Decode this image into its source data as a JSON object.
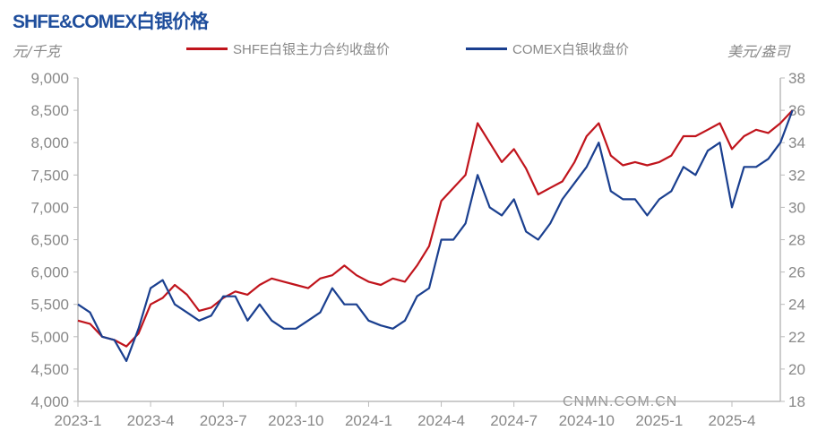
{
  "chart_data": {
    "type": "line",
    "title": "SHFE&COMEX白银价格",
    "ylabel_left": "元/千克",
    "ylabel_right": "美元/盎司",
    "ylim_left": [
      4000,
      9000
    ],
    "ylim_right": [
      18,
      38
    ],
    "yticks_left": [
      "4,000",
      "4,500",
      "5,000",
      "5,500",
      "6,000",
      "6,500",
      "7,000",
      "7,500",
      "8,000",
      "8,500",
      "9,000"
    ],
    "yticks_right": [
      "18",
      "20",
      "22",
      "24",
      "26",
      "28",
      "30",
      "32",
      "34",
      "36",
      "38"
    ],
    "xticks": [
      "2023-1",
      "2023-4",
      "2023-7",
      "2023-10",
      "2024-1",
      "2024-4",
      "2024-7",
      "2024-10",
      "2025-1",
      "2025-4"
    ],
    "grid": false,
    "legend_position": "top",
    "watermark": "CNMN.COM.CN",
    "x": [
      "2023-01-01",
      "2023-01-16",
      "2023-02-01",
      "2023-02-16",
      "2023-03-01",
      "2023-03-16",
      "2023-04-01",
      "2023-04-16",
      "2023-05-01",
      "2023-05-16",
      "2023-06-01",
      "2023-06-16",
      "2023-07-01",
      "2023-07-16",
      "2023-08-01",
      "2023-08-16",
      "2023-09-01",
      "2023-09-16",
      "2023-10-01",
      "2023-10-16",
      "2023-11-01",
      "2023-11-16",
      "2023-12-01",
      "2023-12-16",
      "2024-01-01",
      "2024-01-16",
      "2024-02-01",
      "2024-02-16",
      "2024-03-01",
      "2024-03-16",
      "2024-04-01",
      "2024-04-16",
      "2024-05-01",
      "2024-05-16",
      "2024-06-01",
      "2024-06-16",
      "2024-07-01",
      "2024-07-16",
      "2024-08-01",
      "2024-08-16",
      "2024-09-01",
      "2024-09-16",
      "2024-10-01",
      "2024-10-16",
      "2024-11-01",
      "2024-11-16",
      "2024-12-01",
      "2024-12-16",
      "2025-01-01",
      "2025-01-16",
      "2025-02-01",
      "2025-02-16",
      "2025-03-01",
      "2025-03-16",
      "2025-04-01",
      "2025-04-16",
      "2025-05-01",
      "2025-05-16",
      "2025-06-01",
      "2025-06-16"
    ],
    "series": [
      {
        "name": "SHFE白银主力合约收盘价",
        "axis": "left",
        "color": "#c0141c",
        "values": [
          5250,
          5200,
          5000,
          4950,
          4850,
          5050,
          5500,
          5600,
          5800,
          5650,
          5400,
          5450,
          5600,
          5700,
          5650,
          5800,
          5900,
          5850,
          5800,
          5750,
          5900,
          5950,
          6100,
          5950,
          5850,
          5800,
          5900,
          5850,
          6100,
          6400,
          7100,
          7300,
          7500,
          8300,
          8000,
          7700,
          7900,
          7600,
          7200,
          7300,
          7400,
          7700,
          8100,
          8300,
          7800,
          7650,
          7700,
          7650,
          7700,
          7800,
          8100,
          8100,
          8200,
          8300,
          7900,
          8100,
          8200,
          8150,
          8300,
          8500
        ]
      },
      {
        "name": "COMEX白银收盘价",
        "axis": "right",
        "color": "#1a3f8f",
        "values": [
          24,
          23.5,
          22,
          21.8,
          20.5,
          22.5,
          25,
          25.5,
          24,
          23.5,
          23,
          23.3,
          24.5,
          24.5,
          23,
          24,
          23,
          22.5,
          22.5,
          23,
          23.5,
          25,
          24,
          24,
          23,
          22.7,
          22.5,
          23,
          24.5,
          25,
          28,
          28,
          29,
          32,
          30,
          29.5,
          30.5,
          28.5,
          28,
          29,
          30.5,
          31.5,
          32.5,
          34,
          31,
          30.5,
          30.5,
          29.5,
          30.5,
          31,
          32.5,
          32,
          33.5,
          34,
          30,
          32.5,
          32.5,
          33,
          34,
          36
        ]
      }
    ]
  }
}
